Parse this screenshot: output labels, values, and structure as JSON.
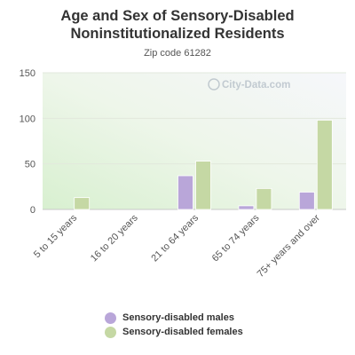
{
  "chart_data": {
    "type": "bar",
    "title": "Age and Sex of Sensory-Disabled Noninstitutionalized Residents",
    "subtitle": "Zip code 61282",
    "categories": [
      "5 to 15 years",
      "16 to 20 years",
      "21 to 64 years",
      "65 to 74 years",
      "75+ years and over"
    ],
    "series": [
      {
        "name": "Sensory-disabled males",
        "color": "#b9a6d9",
        "values": [
          0,
          0,
          37,
          4,
          19
        ]
      },
      {
        "name": "Sensory-disabled females",
        "color": "#c5d8a4",
        "values": [
          13,
          0,
          53,
          23,
          98
        ]
      }
    ],
    "ylim": [
      0,
      150
    ],
    "yticks": [
      0,
      50,
      100,
      150
    ],
    "grid": true,
    "legend_position": "bottom",
    "watermark": "City-Data.com"
  }
}
